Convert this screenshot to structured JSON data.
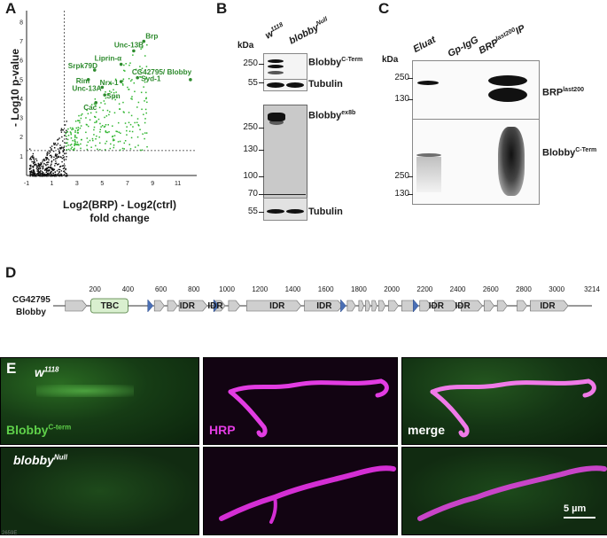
{
  "panels": {
    "a": "A",
    "b": "B",
    "c": "C",
    "d": "D",
    "e": "E"
  },
  "volcano": {
    "ylabel": "- Log10 p-value",
    "xlabel_line1": "Log2(BRP) - Log2(ctrl)",
    "xlabel_line2": "fold change",
    "x_ticks": [
      "-1",
      "1",
      "3",
      "5",
      "7",
      "9",
      "11"
    ],
    "y_ticks": [
      "1",
      "2",
      "3",
      "4",
      "5",
      "6",
      "7",
      "8"
    ],
    "genes": [
      {
        "name": "Brp"
      },
      {
        "name": "Unc-13B"
      },
      {
        "name": "Liprin-α"
      },
      {
        "name": "CG42795/ Blobby"
      },
      {
        "name": "Srpk79D"
      },
      {
        "name": "Syd-1"
      },
      {
        "name": "Rim"
      },
      {
        "name": "Nrx-1"
      },
      {
        "name": "Unc-13A"
      },
      {
        "name": "Spn"
      },
      {
        "name": "Cac"
      }
    ],
    "colors": {
      "significant": "#2fb52f",
      "background": "#111111"
    }
  },
  "chart_data": {
    "type": "scatter",
    "title": "",
    "xlabel": "Log2(BRP) - Log2(ctrl) fold change",
    "ylabel": "- Log10 p-value",
    "xlim": [
      -1,
      12.5
    ],
    "ylim": [
      0,
      8.6
    ],
    "x_ticks": [
      -1,
      1,
      3,
      5,
      7,
      9,
      11
    ],
    "y_ticks": [
      1,
      2,
      3,
      4,
      5,
      6,
      7,
      8
    ],
    "thresholds": {
      "x": 2,
      "y": 1.3
    },
    "labeled_points": [
      {
        "label": "Brp",
        "x": 8.3,
        "y": 7.0
      },
      {
        "label": "Unc-13B",
        "x": 7.5,
        "y": 6.5
      },
      {
        "label": "Liprin-α",
        "x": 6.5,
        "y": 5.8
      },
      {
        "label": "CG42795/ Blobby",
        "x": 12.0,
        "y": 5.0
      },
      {
        "label": "Srpk79D",
        "x": 4.4,
        "y": 5.5
      },
      {
        "label": "Syd-1",
        "x": 7.8,
        "y": 5.1
      },
      {
        "label": "Rim",
        "x": 3.9,
        "y": 5.0
      },
      {
        "label": "Nrx-1",
        "x": 6.5,
        "y": 4.9
      },
      {
        "label": "Unc-13A",
        "x": 5.0,
        "y": 4.6
      },
      {
        "label": "Spn",
        "x": 5.2,
        "y": 4.2
      },
      {
        "label": "Cac",
        "x": 4.5,
        "y": 3.8
      }
    ]
  },
  "blotB": {
    "kda": "kDa",
    "lanes": [
      "w1118",
      "blobbyNull"
    ],
    "lane1_base": "w",
    "lane1_sup": "1118",
    "lane2_base": "blobby",
    "lane2_sup": "Null",
    "top_markers": [
      "250",
      "55"
    ],
    "top_labels": {
      "blobby": "Blobby",
      "blobby_sup": "C-Term",
      "tubulin": "Tubulin"
    },
    "bottom_markers": [
      "250",
      "130",
      "100",
      "70",
      "55"
    ],
    "bottom_labels": {
      "blobby": "Blobby",
      "blobby_sup": "ex8b",
      "tubulin": "Tubulin"
    }
  },
  "blotC": {
    "kda": "kDa",
    "lanes": [
      "Eluat",
      "Gp-IgG",
      "BRPlast200IP"
    ],
    "lane3_base": "BRP",
    "lane3_sup": "last200",
    "lane3_end": "IP",
    "top_markers": [
      "250",
      "130"
    ],
    "top_label": "BRP",
    "top_label_sup": "last200",
    "bottom_markers": [
      "250",
      "130"
    ],
    "bottom_label": "Blobby",
    "bottom_label_sup": "C-Term"
  },
  "domain": {
    "gene_line1": "CG42795",
    "gene_line2": "Blobby",
    "scale": [
      "200",
      "400",
      "600",
      "800",
      "1000",
      "1200",
      "1400",
      "1600",
      "1800",
      "2000",
      "2200",
      "2400",
      "2600",
      "2800",
      "3000",
      "3214"
    ],
    "tbc": "TBC",
    "idr": "IDR",
    "colors": {
      "tbc": "#d9efcf",
      "arrow": "#cfcfcf",
      "triangle": "#4a6fb5"
    }
  },
  "micro": {
    "row1_genotype_base": "w",
    "row1_genotype_sup": "1118",
    "row2_genotype_base": "blobby",
    "row2_genotype_sup": "Null",
    "green_label": "Blobby",
    "green_label_sup": "C-term",
    "magenta_label": "HRP",
    "merge_label": "merge",
    "scalebar": "5 µm",
    "colors": {
      "green": "#5fd14a",
      "magenta": "#e23ce2"
    }
  },
  "footer_id": "2659E"
}
